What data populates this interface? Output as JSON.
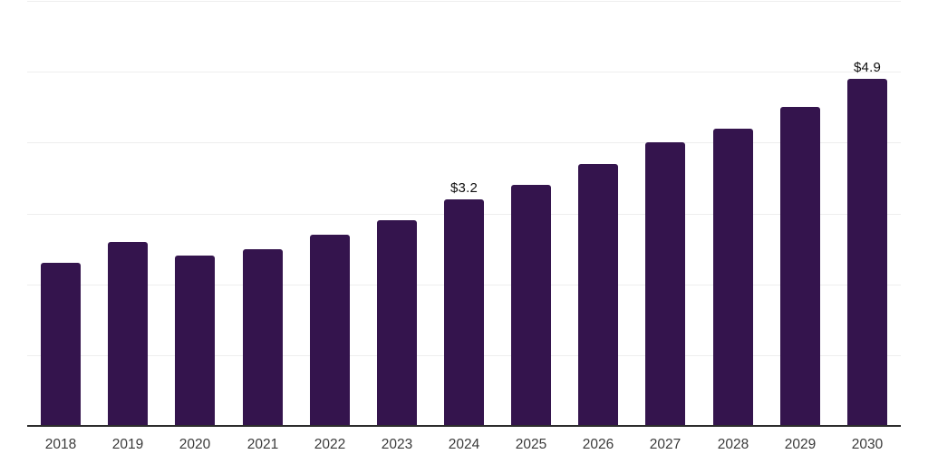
{
  "chart_data": {
    "type": "bar",
    "title": "",
    "xlabel": "",
    "ylabel": "",
    "categories": [
      "2018",
      "2019",
      "2020",
      "2021",
      "2022",
      "2023",
      "2024",
      "2025",
      "2026",
      "2027",
      "2028",
      "2029",
      "2030"
    ],
    "values": [
      2.3,
      2.6,
      2.4,
      2.5,
      2.7,
      2.9,
      3.2,
      3.4,
      3.7,
      4.0,
      4.2,
      4.5,
      4.9
    ],
    "data_labels": [
      "",
      "",
      "",
      "",
      "",
      "",
      "$3.2",
      "",
      "",
      "",
      "",
      "",
      "$4.9"
    ],
    "ylim": [
      0,
      6
    ],
    "gridline_values": [
      1,
      2,
      3,
      4,
      5,
      6
    ],
    "grid_on": true,
    "legend_position": "none",
    "colors": {
      "bar": "#34144d",
      "data_label": "#111111",
      "tick_label": "#3a3a3a",
      "axis_line": "#2d2d2d",
      "gridline": "#eeeeee",
      "background": "#ffffff"
    }
  }
}
